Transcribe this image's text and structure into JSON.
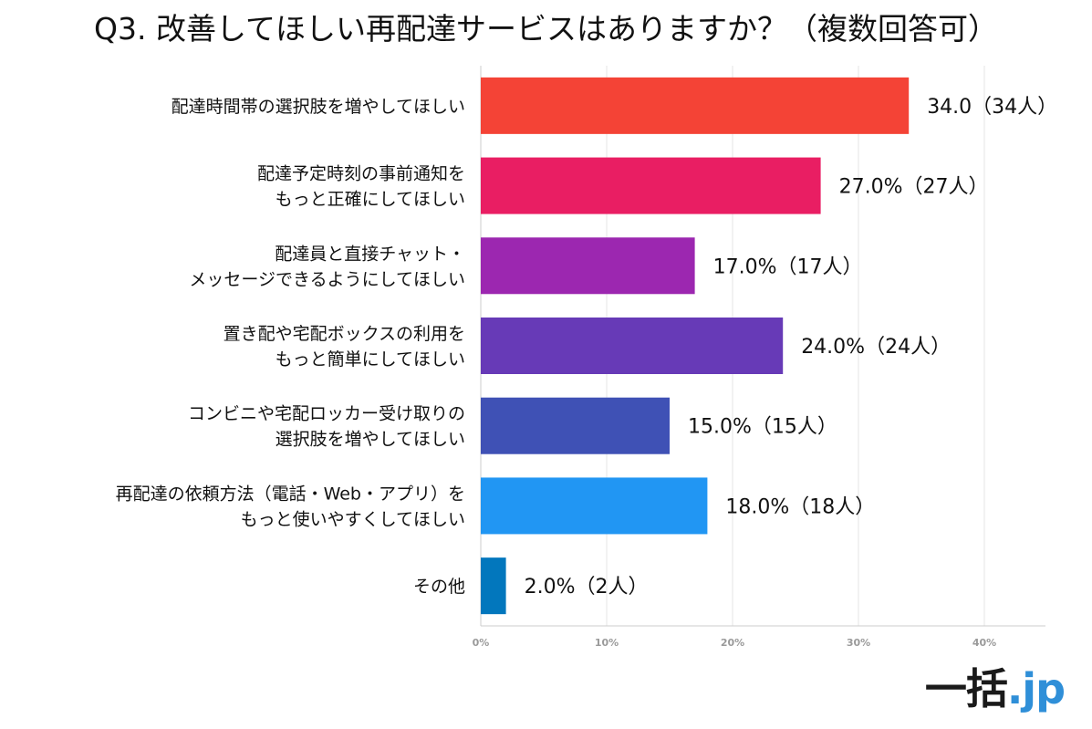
{
  "chart_data": {
    "type": "bar",
    "orientation": "horizontal",
    "title": "Q3. 改善してほしい再配達サービスはありますか？（複数回答可）",
    "categories": [
      [
        "配達時間帯の選択肢を増やしてほしい"
      ],
      [
        "配達予定時刻の事前通知を",
        "もっと正確にしてほしい"
      ],
      [
        "配達員と直接チャット・",
        "メッセージできるようにしてほしい"
      ],
      [
        "置き配や宅配ボックスの利用を",
        "もっと簡単にしてほしい"
      ],
      [
        "コンビニや宅配ロッカー受け取りの",
        "選択肢を増やしてほしい"
      ],
      [
        "再配達の依頼方法（電話・Web・アプリ）を",
        "もっと使いやすくしてほしい"
      ],
      [
        "その他"
      ]
    ],
    "values": [
      34.0,
      27.0,
      17.0,
      24.0,
      15.0,
      18.0,
      2.0
    ],
    "value_labels": [
      "34.0（34人）",
      "27.0%（27人）",
      "17.0%（17人）",
      "24.0%（24人）",
      "15.0%（15人）",
      "18.0%（18人）",
      "2.0%（2人）"
    ],
    "colors": [
      "#f44336",
      "#e91e63",
      "#9c27b0",
      "#673ab7",
      "#3f51b5",
      "#2196f3",
      "#0277bd"
    ],
    "xlim": [
      0,
      45
    ],
    "ticks": [
      0,
      10,
      20,
      30,
      40
    ],
    "tick_labels": [
      "0%",
      "10%",
      "20%",
      "30%",
      "40%"
    ],
    "grid": true,
    "legend": "none"
  },
  "logo": {
    "main": "一括",
    "sub": ".jp"
  }
}
